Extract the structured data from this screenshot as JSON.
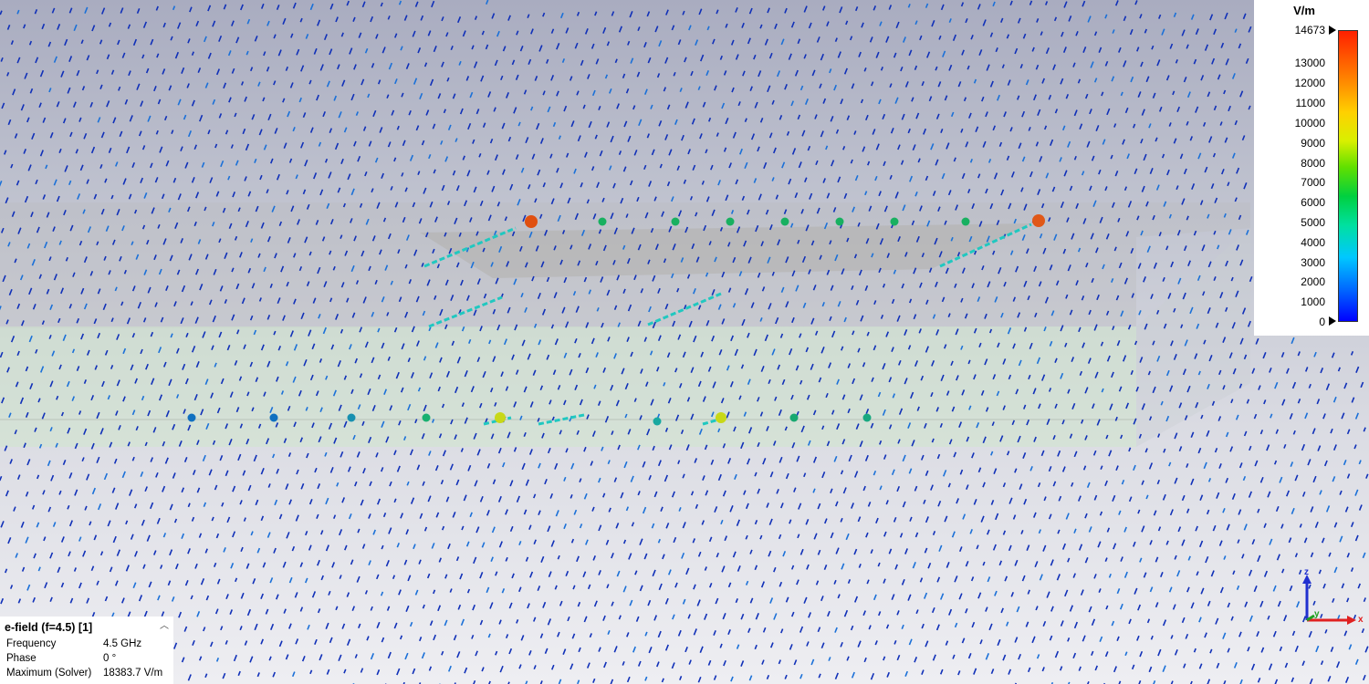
{
  "result": {
    "title": "e-field (f=4.5) [1]",
    "rows": [
      {
        "label": "Frequency",
        "value": "4.5 GHz"
      },
      {
        "label": "Phase",
        "value": "0 °"
      },
      {
        "label": "Maximum (Solver)",
        "value": "18383.7 V/m"
      }
    ],
    "collapse_icon": "chevron-up-icon"
  },
  "legend": {
    "unit": "V/m",
    "max": 14673,
    "min": 0,
    "ticks": [
      "14673",
      "13000",
      "12000",
      "11000",
      "10000",
      "9000",
      "8000",
      "7000",
      "6000",
      "5000",
      "4000",
      "3000",
      "2000",
      "1000",
      "0"
    ],
    "colors": [
      "#0000ff",
      "#00c8ff",
      "#00d040",
      "#d8f000",
      "#ff8000",
      "#ff2000"
    ]
  },
  "axes": {
    "x": "x",
    "y": "y",
    "z": "z",
    "colors": {
      "x": "#e02020",
      "y": "#20a020",
      "z": "#2030d0"
    }
  },
  "scene": {
    "substrate_color": "#cfe6cc",
    "plate_color": "#b8b8b4"
  }
}
